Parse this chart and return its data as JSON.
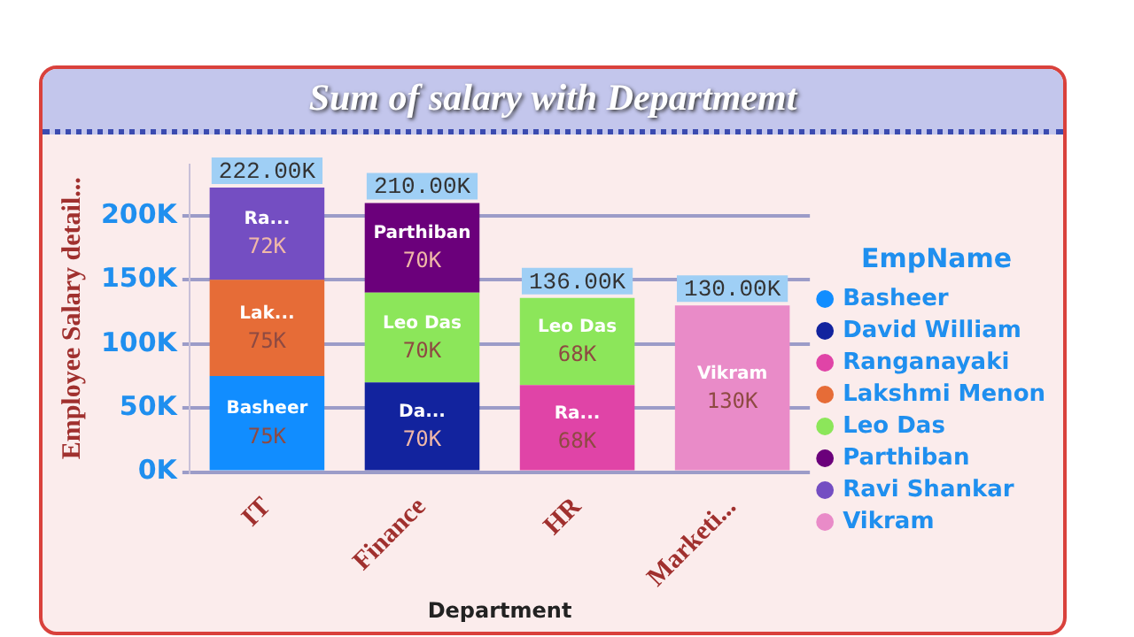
{
  "chart_data": {
    "type": "bar",
    "stacked": true,
    "title": "Sum of salary with Departmemt",
    "xlabel": "Department",
    "ylabel": "Employee Salary detail...",
    "legend_title": "EmpName",
    "legend": "right",
    "grid": "y",
    "categories": [
      "IT",
      "Finance",
      "HR",
      "Marketi..."
    ],
    "ylim": [
      0,
      240000
    ],
    "yticks": [
      {
        "value": 0,
        "label": "0K"
      },
      {
        "value": 50000,
        "label": "50K"
      },
      {
        "value": 100000,
        "label": "100K"
      },
      {
        "value": 150000,
        "label": "150K"
      },
      {
        "value": 200000,
        "label": "200K"
      }
    ],
    "annotations": [
      "Basheer",
      "Lak...",
      "Ra...",
      "Da...",
      "Leo Das",
      "Parthiban",
      "Ra...",
      "Leo Das",
      "Vikram"
    ],
    "totals": [
      "222.00K",
      "210.00K",
      "136.00K",
      "130.00K"
    ],
    "series": [
      {
        "name": "Basheer",
        "color": "#118dff",
        "values": [
          75000,
          null,
          null,
          null
        ],
        "value_labels": [
          "75K",
          null,
          null,
          null
        ]
      },
      {
        "name": "David William",
        "color": "#12239e",
        "values": [
          null,
          70000,
          null,
          null
        ],
        "value_labels": [
          null,
          "70K",
          null,
          null
        ]
      },
      {
        "name": "Ranganayaki",
        "color": "#e044a7",
        "values": [
          null,
          null,
          68000,
          null
        ],
        "value_labels": [
          null,
          null,
          "68K",
          null
        ]
      },
      {
        "name": "Lakshmi Menon",
        "color": "#e66c37",
        "values": [
          75000,
          null,
          null,
          null
        ],
        "value_labels": [
          "75K",
          null,
          null,
          null
        ]
      },
      {
        "name": "Leo Das",
        "color": "#8ce65a",
        "values": [
          null,
          70000,
          68000,
          null
        ],
        "value_labels": [
          null,
          "70K",
          "68K",
          null
        ]
      },
      {
        "name": "Parthiban",
        "color": "#6b007b",
        "values": [
          null,
          70000,
          null,
          null
        ],
        "value_labels": [
          null,
          "70K",
          null,
          null
        ]
      },
      {
        "name": "Ravi Shankar",
        "color": "#744ec2",
        "values": [
          72000,
          null,
          null,
          null
        ],
        "value_labels": [
          "72K",
          null,
          null,
          null
        ]
      },
      {
        "name": "Vikram",
        "color": "#e98bc8",
        "values": [
          null,
          null,
          null,
          130000
        ],
        "value_labels": [
          null,
          null,
          null,
          "130K"
        ]
      }
    ]
  }
}
